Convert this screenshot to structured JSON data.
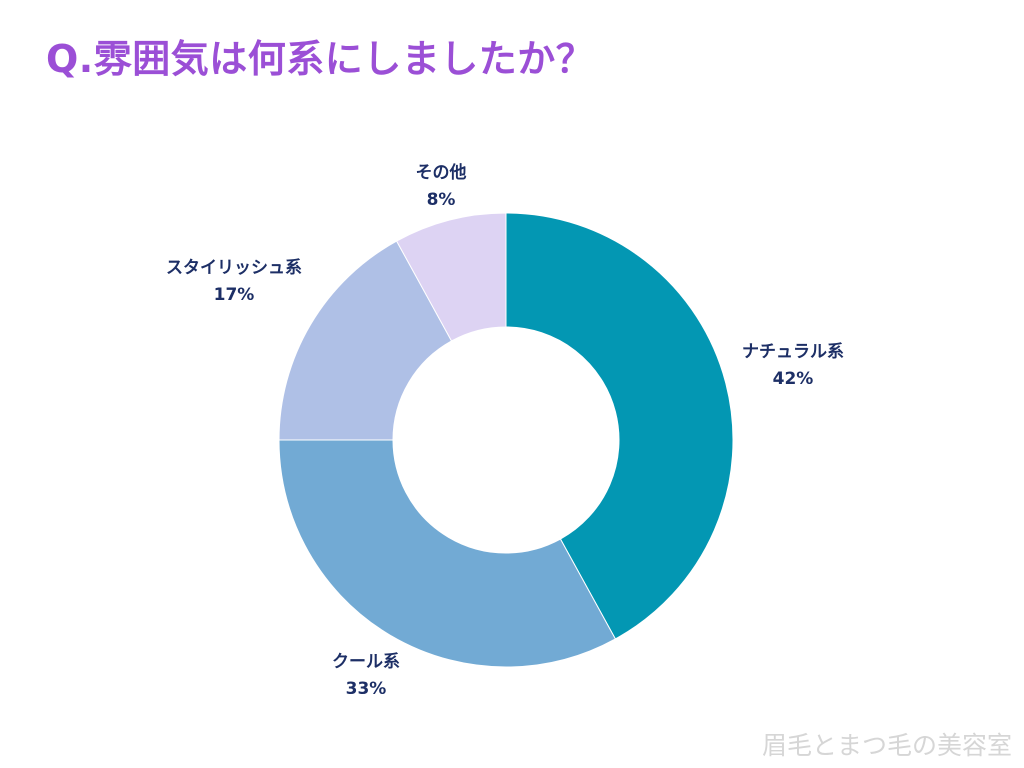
{
  "title": "Q.雰囲気は何系にしましたか？",
  "watermark": "眉毛とまつ毛の美容室",
  "chart_data": {
    "type": "pie",
    "donut": true,
    "title": "Q.雰囲気は何系にしましたか？",
    "legend": "none",
    "slices": [
      {
        "label": "ナチュラル系",
        "value": 42,
        "display": "42%",
        "color": "#0397b3"
      },
      {
        "label": "クール系",
        "value": 33,
        "display": "33%",
        "color": "#72aad4"
      },
      {
        "label": "スタイリッシュ系",
        "value": 17,
        "display": "17%",
        "color": "#afc0e6"
      },
      {
        "label": "その他",
        "value": 8,
        "display": "8%",
        "color": "#ddd3f3"
      }
    ]
  }
}
